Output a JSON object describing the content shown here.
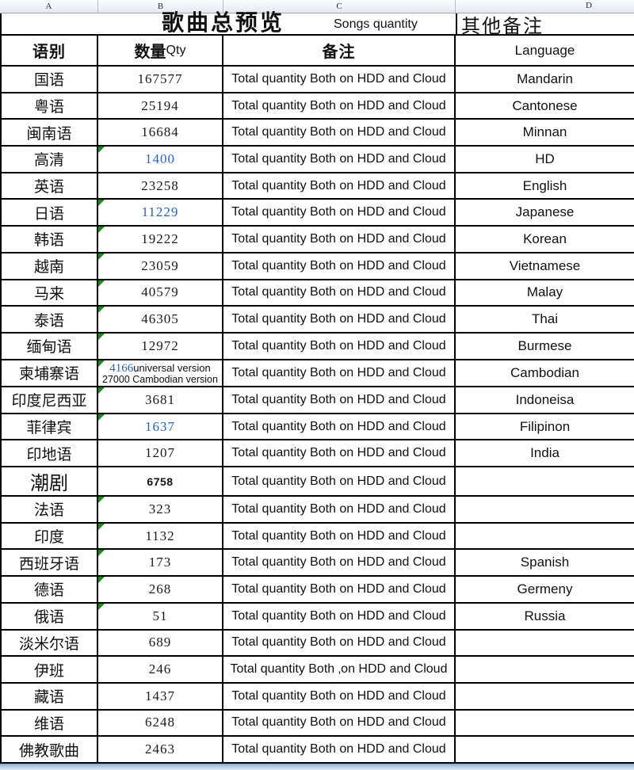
{
  "column_headers": [
    "A",
    "B",
    "C",
    "D"
  ],
  "title": {
    "main": "歌曲总预览",
    "sub": "Songs quantity",
    "right": "其他备注"
  },
  "table_header": {
    "col_a": "语别",
    "col_b_cn": "数量",
    "col_b_en": "Qty",
    "col_c": "备注",
    "col_d": "Language"
  },
  "colors": {
    "number_blue": "#2563c9",
    "number_black": "#1b1b1b",
    "error_triangle_green": "#1a8a1a",
    "grid_border": "#000000",
    "bottom_band_blue": "#b7cde6"
  },
  "rows": [
    {
      "lang": "国语",
      "qty": "167577",
      "qty_color": "black",
      "error_triangle": false,
      "note": "Total quantity Both on HDD and Cloud",
      "language": "Mandarin"
    },
    {
      "lang": "粤语",
      "qty": "25194",
      "qty_color": "black",
      "error_triangle": false,
      "note": "Total quantity Both on HDD and Cloud",
      "language": "Cantonese"
    },
    {
      "lang": "闽南语",
      "qty": "16684",
      "qty_color": "black",
      "error_triangle": false,
      "note": "Total quantity Both on HDD and Cloud",
      "language": "Minnan"
    },
    {
      "lang": "高清",
      "qty": "1400",
      "qty_color": "blue",
      "error_triangle": true,
      "note": "Total quantity Both on HDD and Cloud",
      "language": "HD"
    },
    {
      "lang": "英语",
      "qty": "23258",
      "qty_color": "black",
      "error_triangle": false,
      "note": "Total quantity Both on HDD and Cloud",
      "language": "English"
    },
    {
      "lang": "日语",
      "qty": "11229",
      "qty_color": "blue",
      "error_triangle": true,
      "note": "Total quantity Both on HDD and Cloud",
      "language": "Japanese"
    },
    {
      "lang": "韩语",
      "qty": "19222",
      "qty_color": "black",
      "error_triangle": true,
      "note": "Total quantity Both on HDD and Cloud",
      "language": "Korean"
    },
    {
      "lang": "越南",
      "qty": "23059",
      "qty_color": "black",
      "error_triangle": true,
      "note": "Total quantity Both on HDD and Cloud",
      "language": "Vietnamese"
    },
    {
      "lang": "马来",
      "qty": "40579",
      "qty_color": "black",
      "error_triangle": true,
      "note": "Total quantity Both on HDD and Cloud",
      "language": "Malay"
    },
    {
      "lang": "泰语",
      "qty": "46305",
      "qty_color": "black",
      "error_triangle": true,
      "note": "Total quantity Both on HDD and Cloud",
      "language": "Thai"
    },
    {
      "lang": "缅甸语",
      "qty": "12972",
      "qty_color": "black",
      "error_triangle": true,
      "note": "Total quantity Both on HDD and Cloud",
      "language": "Burmese"
    },
    {
      "lang": "柬埔寨语",
      "qty": "4166",
      "qty_suffix": "universal version",
      "qty_line2": "27000 Cambodian version",
      "qty_color": "blue",
      "error_triangle": true,
      "note": "Total quantity Both on HDD and Cloud",
      "language": "Cambodian"
    },
    {
      "lang": "印度尼西亚",
      "qty": "3681",
      "qty_color": "black",
      "error_triangle": true,
      "note": "Total quantity Both on HDD and Cloud",
      "language": "Indoneisa"
    },
    {
      "lang": "菲律宾",
      "qty": "1637",
      "qty_color": "blue",
      "error_triangle": true,
      "note": "Total quantity Both on HDD and Cloud",
      "language": "Filipinon"
    },
    {
      "lang": "印地语",
      "qty": "1207",
      "qty_color": "black",
      "error_triangle": false,
      "note": "Total quantity Both on HDD and Cloud",
      "language": "India"
    },
    {
      "lang": "潮剧",
      "lang_large": true,
      "qty": "6758",
      "qty_color": "black",
      "qty_bold_small": true,
      "error_triangle": false,
      "note": "Total quantity Both on HDD and Cloud",
      "language": ""
    },
    {
      "lang": "法语",
      "qty": "323",
      "qty_color": "black",
      "error_triangle": true,
      "note": "Total quantity Both on HDD and Cloud",
      "language": ""
    },
    {
      "lang": "印度",
      "qty": "1132",
      "qty_color": "black",
      "error_triangle": true,
      "note": "Total quantity Both on HDD and Cloud",
      "language": ""
    },
    {
      "lang": "西班牙语",
      "qty": "173",
      "qty_color": "black",
      "error_triangle": true,
      "note": "Total quantity Both on HDD and Cloud",
      "language": "Spanish"
    },
    {
      "lang": "德语",
      "qty": "268",
      "qty_color": "black",
      "error_triangle": true,
      "note": "Total quantity Both on HDD and Cloud",
      "language": "Germeny"
    },
    {
      "lang": "俄语",
      "qty": "51",
      "qty_color": "black",
      "error_triangle": true,
      "note": "Total quantity Both on HDD and Cloud",
      "language": "Russia"
    },
    {
      "lang": "淡米尔语",
      "qty": "689",
      "qty_color": "black",
      "error_triangle": false,
      "note": "Total quantity Both on HDD and Cloud",
      "language": ""
    },
    {
      "lang": "伊班",
      "qty": "246",
      "qty_color": "black",
      "error_triangle": false,
      "note": "Total quantity Both ‚on HDD and Cloud",
      "language": ""
    },
    {
      "lang": "藏语",
      "qty": "1437",
      "qty_color": "black",
      "error_triangle": false,
      "note": "Total quantity Both on HDD and Cloud",
      "language": ""
    },
    {
      "lang": "维语",
      "qty": "6248",
      "qty_color": "black",
      "error_triangle": false,
      "note": "Total quantity Both on HDD and Cloud",
      "language": ""
    },
    {
      "lang": "佛教歌曲",
      "qty": "2463",
      "qty_color": "black",
      "error_triangle": false,
      "note": "Total quantity Both on HDD and Cloud",
      "language": ""
    }
  ]
}
